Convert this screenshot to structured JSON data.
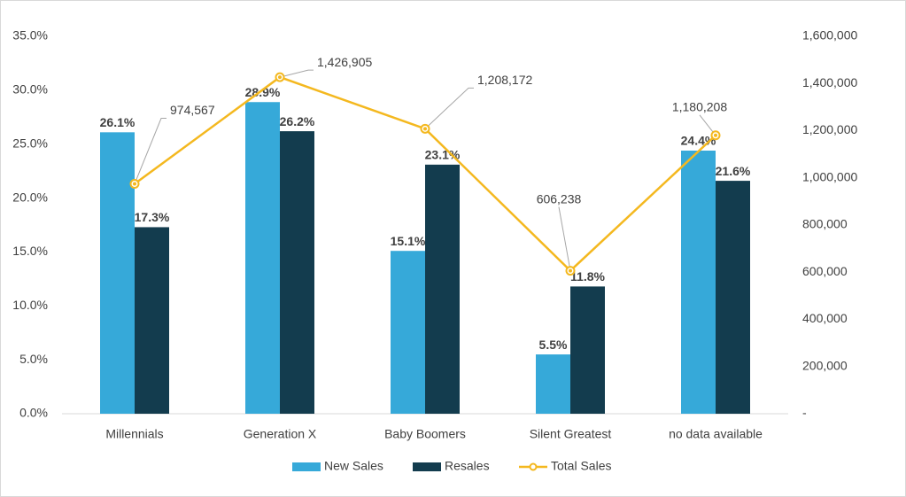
{
  "chart_data": {
    "type": "bar",
    "categories": [
      "Millennials",
      "Generation X",
      "Baby Boomers",
      "Silent Greatest",
      "no data available"
    ],
    "series": [
      {
        "name": "New Sales",
        "type": "bar",
        "color": "#36a9d9",
        "values": [
          26.1,
          28.9,
          15.1,
          5.5,
          24.4
        ],
        "value_labels": [
          "26.1%",
          "28.9%",
          "15.1%",
          "5.5%",
          "24.4%"
        ]
      },
      {
        "name": "Resales",
        "type": "bar",
        "color": "#133c4e",
        "values": [
          17.3,
          26.2,
          23.1,
          11.8,
          21.6
        ],
        "value_labels": [
          "17.3%",
          "26.2%",
          "23.1%",
          "11.8%",
          "21.6%"
        ]
      },
      {
        "name": "Total Sales",
        "type": "line",
        "axis": "y2",
        "color": "#f4b81f",
        "values": [
          974567,
          1426905,
          1208172,
          606238,
          1180208
        ],
        "value_labels": [
          "974,567",
          "1,426,905",
          "1,208,172",
          "606,238",
          "1,180,208"
        ]
      }
    ],
    "ylim": [
      0,
      35
    ],
    "yticks": [
      {
        "value": 0,
        "label": "0.0%"
      },
      {
        "value": 5,
        "label": "5.0%"
      },
      {
        "value": 10,
        "label": "10.0%"
      },
      {
        "value": 15,
        "label": "15.0%"
      },
      {
        "value": 20,
        "label": "20.0%"
      },
      {
        "value": 25,
        "label": "25.0%"
      },
      {
        "value": 30,
        "label": "30.0%"
      },
      {
        "value": 35,
        "label": "35.0%"
      }
    ],
    "y2lim": [
      0,
      1600000
    ],
    "y2ticks": [
      {
        "value": 0,
        "label": "-"
      },
      {
        "value": 200000,
        "label": "200,000"
      },
      {
        "value": 400000,
        "label": "400,000"
      },
      {
        "value": 600000,
        "label": "600,000"
      },
      {
        "value": 800000,
        "label": "800,000"
      },
      {
        "value": 1000000,
        "label": "1,000,000"
      },
      {
        "value": 1200000,
        "label": "1,200,000"
      },
      {
        "value": 1400000,
        "label": "1,400,000"
      },
      {
        "value": 1600000,
        "label": "1,600,000"
      }
    ],
    "legend": "bottom",
    "grid": false
  }
}
